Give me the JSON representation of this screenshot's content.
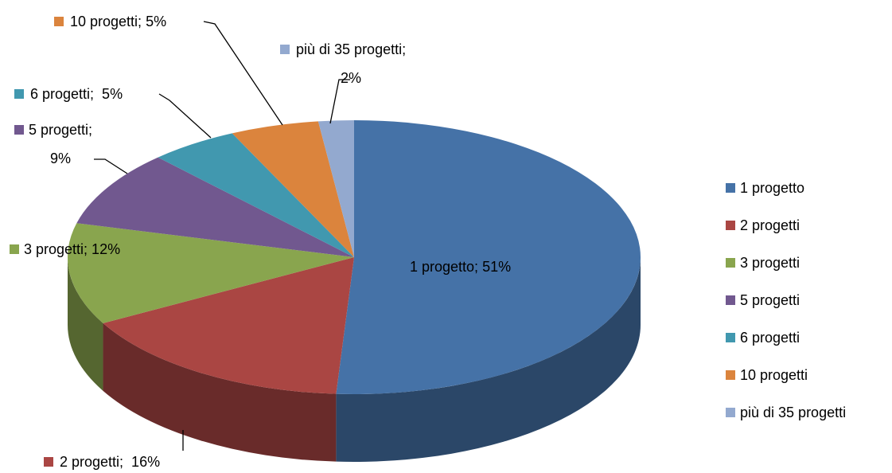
{
  "chart_data": {
    "type": "pie",
    "three_d": true,
    "categories": [
      "1 progetto",
      "2 progetti",
      "3 progetti",
      "5 progetti",
      "6 progetti",
      "10 progetti",
      "più di 35 progetti"
    ],
    "values": [
      51,
      16,
      12,
      9,
      5,
      5,
      2
    ],
    "value_labels": [
      "1 progetto; 51%",
      "2 progetti;  16%",
      "3 progetti; 12%",
      "5 progetti;\n9%",
      "6 progetti;  5%",
      "10 progetti; 5%",
      "più di 35 progetti;\n2%"
    ],
    "colors": [
      "#4572a7",
      "#aa4643",
      "#89a54e",
      "#71588f",
      "#4198af",
      "#db843d",
      "#93a9cf"
    ],
    "legend": "right"
  }
}
